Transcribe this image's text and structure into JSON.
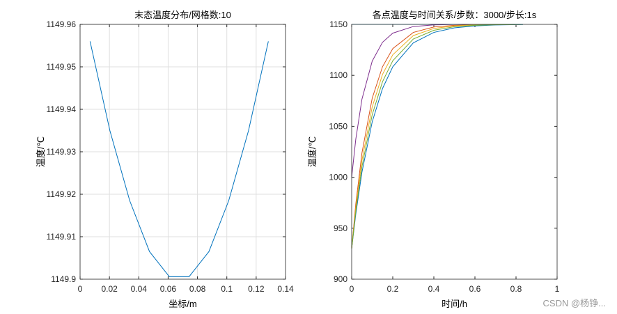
{
  "chart_data": [
    {
      "type": "line",
      "title": "末态温度分布/网格数:10",
      "x_label": "坐标/m",
      "y_label": "温度/℃",
      "x": [
        0.0068,
        0.0203,
        0.0338,
        0.0473,
        0.0608,
        0.0743,
        0.0878,
        0.1013,
        0.1148,
        0.1283
      ],
      "values": [
        1149.956,
        1149.935,
        1149.9185,
        1149.9065,
        1149.9006,
        1149.9006,
        1149.9065,
        1149.9185,
        1149.935,
        1149.956
      ],
      "color": "#0072bd",
      "xlim": [
        0,
        0.14
      ],
      "xticks": [
        0,
        0.02,
        0.04,
        0.06,
        0.08,
        0.1,
        0.12,
        0.14
      ],
      "ylim": [
        1149.9,
        1149.96
      ],
      "yticks": [
        1149.9,
        1149.91,
        1149.92,
        1149.93,
        1149.94,
        1149.95,
        1149.96
      ],
      "grid": true
    },
    {
      "type": "line",
      "title": "各点温度与时间关系/步数：3000/步长:1s",
      "x_label": "时间/h",
      "y_label": "温度/℃",
      "x": [
        0,
        0.02,
        0.05,
        0.1,
        0.15,
        0.2,
        0.3,
        0.4,
        0.5,
        0.6,
        0.7,
        0.8333
      ],
      "series": [
        {
          "color": "#0072bd",
          "values": [
            930,
            963.8,
            1004.98,
            1054.4,
            1087.0,
            1108.4,
            1131.9,
            1142.1,
            1146.6,
            1148.5,
            1149.4,
            1149.8
          ]
        },
        {
          "color": "#d95319",
          "values": [
            930,
            973.8,
            1023.8,
            1077.6,
            1108.4,
            1126.2,
            1142.1,
            1147.4,
            1149.1,
            1149.7,
            1149.9,
            1150
          ]
        },
        {
          "color": "#edb120",
          "values": [
            930,
            969.9,
            1016.6,
            1069.1,
            1100.9,
            1120.2,
            1139.0,
            1146.0,
            1148.5,
            1149.5,
            1149.8,
            1150
          ]
        },
        {
          "color": "#7e2f8e",
          "values": [
            1000,
            1037.3,
            1076.6,
            1114.0,
            1132.4,
            1141.4,
            1147.9,
            1149.5,
            1149.9,
            1150,
            1150,
            1150
          ]
        },
        {
          "color": "#77ac30",
          "values": [
            930,
            966.6,
            1010.3,
            1061.4,
            1093.7,
            1114.3,
            1135.6,
            1144.2,
            1147.7,
            1149.1,
            1149.6,
            1149.9
          ]
        },
        {
          "color": "#4dbeee",
          "values": [
            1150,
            1150,
            1150,
            1150,
            1150,
            1150,
            1150,
            1150,
            1150,
            1150,
            1150,
            1150
          ]
        }
      ],
      "xlim": [
        0,
        1
      ],
      "xticks": [
        0,
        0.2,
        0.4,
        0.6,
        0.8,
        1
      ],
      "ylim": [
        900,
        1150
      ],
      "yticks": [
        900,
        950,
        1000,
        1050,
        1100,
        1150
      ],
      "grid": false
    }
  ],
  "watermark": "CSDN @杨铮..."
}
